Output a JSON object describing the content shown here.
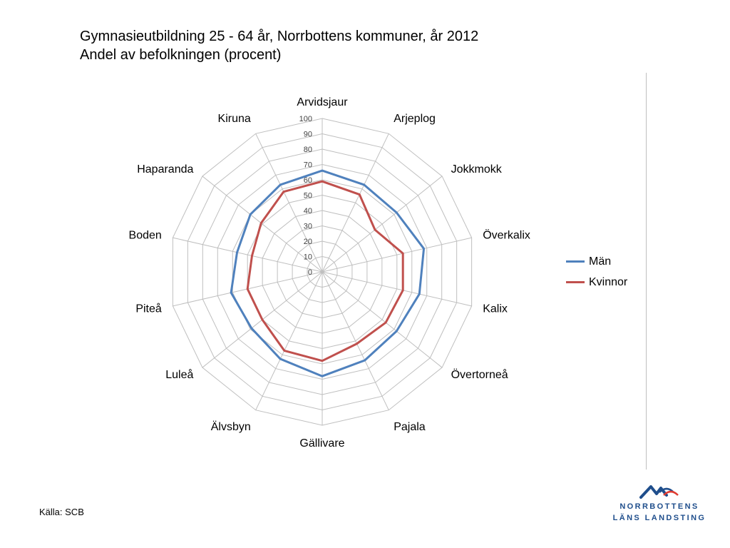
{
  "title": "Gymnasieutbildning 25 -  64 år,  Norrbottens kommuner, år 2012",
  "subtitle": "Andel av befolkningen (procent)",
  "source": "Källa: SCB",
  "logo": {
    "line1": "NORRBOTTENS",
    "line2": "LÄNS LANDSTING",
    "color": "#1f4e8c",
    "accent": "#e03c31"
  },
  "chart_data": {
    "type": "radar",
    "categories": [
      "Arvidsjaur",
      "Arjeplog",
      "Jokkmokk",
      "Överkalix",
      "Kalix",
      "Övertorneå",
      "Pajala",
      "Gällivare",
      "Älvsbyn",
      "Luleå",
      "Piteå",
      "Boden",
      "Haparanda",
      "Kiruna"
    ],
    "ticks": [
      "0",
      "10",
      "20",
      "30",
      "40",
      "50",
      "60",
      "70",
      "80",
      "90",
      "100"
    ],
    "rmin": 0,
    "rmax": 100,
    "series": [
      {
        "name": "Män",
        "color": "#4f81bd",
        "values": [
          66,
          63,
          62,
          68,
          65,
          62,
          64,
          68,
          63,
          59,
          61,
          57,
          60,
          63
        ]
      },
      {
        "name": "Kvinnor",
        "color": "#c0504d",
        "values": [
          59,
          56,
          44,
          54,
          54,
          53,
          52,
          58,
          57,
          50,
          50,
          47,
          51,
          58
        ]
      }
    ],
    "legend_position": "right",
    "grid": true
  }
}
